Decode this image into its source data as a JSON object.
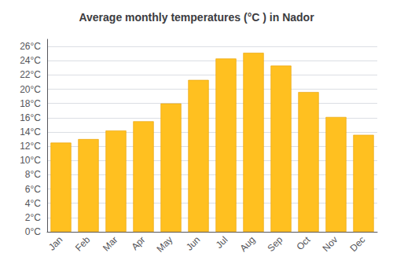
{
  "chart_data": {
    "type": "bar",
    "title": "Average monthly temperatures (°C ) in Nador",
    "categories": [
      "Jan",
      "Feb",
      "Mar",
      "Apr",
      "May",
      "Jun",
      "Jul",
      "Aug",
      "Sep",
      "Oct",
      "Nov",
      "Dec"
    ],
    "values": [
      12.5,
      13.0,
      14.2,
      15.5,
      18.0,
      21.3,
      24.3,
      25.1,
      23.3,
      19.6,
      16.1,
      13.6
    ],
    "color": "#FFC020",
    "ylim": [
      0,
      27
    ],
    "yticks": [
      {
        "value": 0,
        "label": "0°C"
      },
      {
        "value": 2,
        "label": "2°C"
      },
      {
        "value": 4,
        "label": "4°C"
      },
      {
        "value": 6,
        "label": "6°C"
      },
      {
        "value": 8,
        "label": "8°C"
      },
      {
        "value": 10,
        "label": "10°C"
      },
      {
        "value": 12,
        "label": "12°C"
      },
      {
        "value": 14,
        "label": "14°C"
      },
      {
        "value": 16,
        "label": "16°C"
      },
      {
        "value": 18,
        "label": "18°C"
      },
      {
        "value": 20,
        "label": "20°C"
      },
      {
        "value": 22,
        "label": "22°C"
      },
      {
        "value": 24,
        "label": "24°C"
      },
      {
        "value": 26,
        "label": "26°C"
      }
    ],
    "grid": true
  }
}
